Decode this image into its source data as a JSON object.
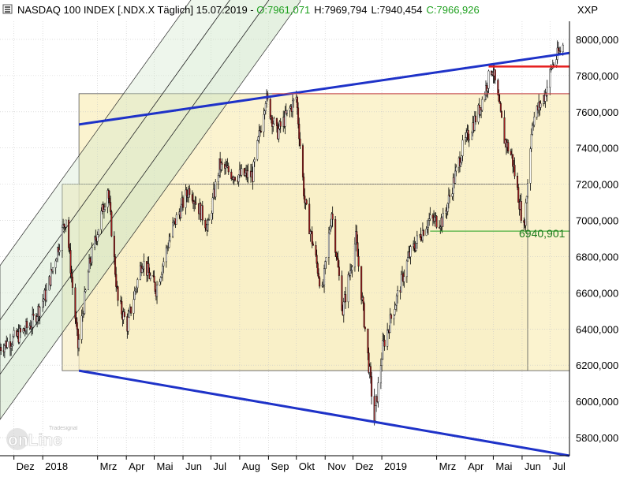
{
  "header": {
    "title": "NASDAQ 100 INDEX [.NDX.X  Täglich] 15.07.2019",
    "open": "O:7961,071",
    "high": "H:7969,794",
    "low": "L:7940,454",
    "close": "C:7966,926",
    "unit": "XXP",
    "separator": " - "
  },
  "watermark": {
    "brand_line1": "Tradesignal",
    "brand_line2": "onLine"
  },
  "annotations": {
    "support_level_label": "6940,901"
  },
  "colors": {
    "background": "#ffffff",
    "grid": "#c8c8c8",
    "candle_up": "#ffffff",
    "candle_down": "#a01e1e",
    "candle_outline": "#000000",
    "trendline": "#1e32c8",
    "resistance": "#e61e1e",
    "zone_fill": "#fbf3cf",
    "channel_fill": "#cfe6c8",
    "open_text": "#1ea01e",
    "close_text": "#1ea01e",
    "support_line": "#1ea01e"
  },
  "chart_data": {
    "type": "candlestick",
    "title": "NASDAQ 100 INDEX [.NDX.X  Täglich] 15.07.2019",
    "ylabel": "XXP",
    "ylim": [
      5700,
      8100
    ],
    "y_ticks": [
      "5800,000",
      "6000,000",
      "6200,000",
      "6400,000",
      "6600,000",
      "6800,000",
      "7000,000",
      "7200,000",
      "7400,000",
      "7600,000",
      "7800,000",
      "8000,000"
    ],
    "y_tick_values": [
      5800,
      6000,
      6200,
      6400,
      6600,
      6800,
      7000,
      7200,
      7400,
      7600,
      7800,
      8000
    ],
    "x_range": [
      "2017-11-16",
      "2019-07-22"
    ],
    "x_ticks": [
      {
        "label": "Dez",
        "date": "2017-12-01"
      },
      {
        "label": "2018",
        "date": "2018-01-01"
      },
      {
        "label": "Mrz",
        "date": "2018-03-01"
      },
      {
        "label": "Apr",
        "date": "2018-04-01"
      },
      {
        "label": "Mai",
        "date": "2018-05-01"
      },
      {
        "label": "Jun",
        "date": "2018-06-01"
      },
      {
        "label": "Jul",
        "date": "2018-07-01"
      },
      {
        "label": "Aug",
        "date": "2018-08-01"
      },
      {
        "label": "Sep",
        "date": "2018-09-01"
      },
      {
        "label": "Okt",
        "date": "2018-10-01"
      },
      {
        "label": "Nov",
        "date": "2018-11-01"
      },
      {
        "label": "Dez",
        "date": "2018-12-01"
      },
      {
        "label": "2019",
        "date": "2019-01-01"
      },
      {
        "label": "Mrz",
        "date": "2019-03-01"
      },
      {
        "label": "Apr",
        "date": "2019-04-01"
      },
      {
        "label": "Mai",
        "date": "2019-05-01"
      },
      {
        "label": "Jun",
        "date": "2019-06-01"
      },
      {
        "label": "Jul",
        "date": "2019-07-01"
      }
    ],
    "grid": true,
    "price_path": [
      [
        "2017-11-16",
        6300
      ],
      [
        "2017-12-05",
        6360
      ],
      [
        "2017-12-20",
        6430
      ],
      [
        "2018-01-05",
        6600
      ],
      [
        "2018-01-26",
        7020
      ],
      [
        "2018-02-08",
        6300
      ],
      [
        "2018-02-20",
        6750
      ],
      [
        "2018-03-12",
        7180
      ],
      [
        "2018-03-23",
        6550
      ],
      [
        "2018-04-02",
        6420
      ],
      [
        "2018-04-18",
        6780
      ],
      [
        "2018-05-03",
        6620
      ],
      [
        "2018-05-20",
        6950
      ],
      [
        "2018-06-08",
        7180
      ],
      [
        "2018-06-28",
        6960
      ],
      [
        "2018-07-10",
        7300
      ],
      [
        "2018-07-27",
        7250
      ],
      [
        "2018-08-15",
        7250
      ],
      [
        "2018-08-29",
        7680
      ],
      [
        "2018-09-10",
        7480
      ],
      [
        "2018-10-01",
        7680
      ],
      [
        "2018-10-10",
        7100
      ],
      [
        "2018-10-29",
        6600
      ],
      [
        "2018-11-08",
        7050
      ],
      [
        "2018-11-20",
        6500
      ],
      [
        "2018-12-04",
        6900
      ],
      [
        "2018-12-24",
        5900
      ],
      [
        "2019-01-02",
        6300
      ],
      [
        "2019-01-30",
        6800
      ],
      [
        "2019-02-20",
        7000
      ],
      [
        "2019-03-08",
        7000
      ],
      [
        "2019-03-29",
        7400
      ],
      [
        "2019-04-15",
        7600
      ],
      [
        "2019-04-30",
        7850
      ],
      [
        "2019-05-13",
        7450
      ],
      [
        "2019-05-21",
        7350
      ],
      [
        "2019-06-03",
        6950
      ],
      [
        "2019-06-12",
        7550
      ],
      [
        "2019-06-26",
        7700
      ],
      [
        "2019-07-03",
        7850
      ],
      [
        "2019-07-15",
        7966
      ]
    ],
    "levels": {
      "resistance": 7850,
      "zone_top": 7700,
      "zone_bottom": 6170,
      "inner_box_top": 7200,
      "support": 6940.901
    },
    "trendlines": [
      {
        "name": "upper",
        "from": [
          "2018-02-09",
          7530
        ],
        "to": [
          "2019-07-22",
          7925
        ]
      },
      {
        "name": "lower",
        "from": [
          "2018-02-09",
          6170
        ],
        "to": [
          "2019-07-22",
          5700
        ]
      }
    ]
  }
}
